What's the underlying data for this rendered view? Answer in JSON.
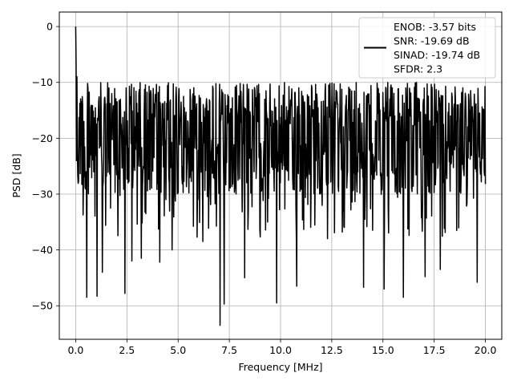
{
  "chart_data": {
    "type": "line",
    "title": "",
    "xlabel": "Frequency [MHz]",
    "ylabel": "PSD [dB]",
    "xlim": [
      -0.8,
      20.8
    ],
    "ylim": [
      -56,
      2.6
    ],
    "x_ticks": [
      0.0,
      2.5,
      5.0,
      7.5,
      10.0,
      12.5,
      15.0,
      17.5,
      20.0
    ],
    "x_tick_labels": [
      "0.0",
      "2.5",
      "5.0",
      "7.5",
      "10.0",
      "12.5",
      "15.0",
      "17.5",
      "20.0"
    ],
    "y_ticks": [
      0,
      -10,
      -20,
      -30,
      -40,
      -50
    ],
    "y_tick_labels": [
      "0",
      "−10",
      "−20",
      "−30",
      "−40",
      "−50"
    ],
    "grid": true,
    "legend_position": "upper right",
    "legend_lines": [
      "ENOB: -3.57 bits",
      "SNR: -19.69 dB",
      "SINAD: -19.74 dB",
      "SFDR: 2.3"
    ],
    "line_color": "#000000",
    "series": [
      {
        "x_start": 0.0,
        "x_end": 20.0,
        "points": 1000,
        "peak": [
          0.0,
          0.0
        ],
        "typical_range": [
          -30,
          -10
        ],
        "notable_minima": [
          [
            0.55,
            -48.5
          ],
          [
            1.05,
            -48.3
          ],
          [
            1.3,
            -44.0
          ],
          [
            2.4,
            -47.8
          ],
          [
            2.75,
            -42.0
          ],
          [
            3.2,
            -41.5
          ],
          [
            4.1,
            -42.2
          ],
          [
            4.7,
            -40.0
          ],
          [
            6.2,
            -38.5
          ],
          [
            7.05,
            -53.5
          ],
          [
            7.25,
            -49.7
          ],
          [
            8.25,
            -45.0
          ],
          [
            9.8,
            -49.5
          ],
          [
            10.8,
            -46.5
          ],
          [
            12.3,
            -38.0
          ],
          [
            14.05,
            -46.7
          ],
          [
            15.05,
            -47.0
          ],
          [
            16.0,
            -48.5
          ],
          [
            17.05,
            -44.8
          ],
          [
            17.8,
            -43.5
          ],
          [
            19.6,
            -45.8
          ]
        ]
      }
    ]
  }
}
